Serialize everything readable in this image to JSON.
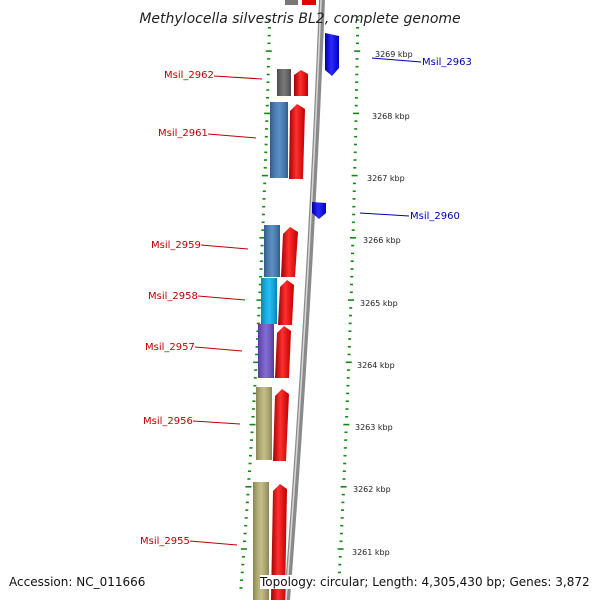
{
  "title": "Methylocella silvestris BL2, complete genome",
  "footer": {
    "accession": "Accession: NC_011666",
    "topology": "Topology: circular; Length: 4,305,430 bp; Genes: 3,872"
  },
  "colors": {
    "forward_label": "#c00000",
    "reverse_label": "#0000b0",
    "forward_arrow": "#ff0000",
    "reverse_arrow": "#0000ff",
    "backbone": "#909090",
    "ticks": "#118811"
  },
  "ticks": [
    {
      "label": "3269 kbp"
    },
    {
      "label": "3268 kbp"
    },
    {
      "label": "3267 kbp"
    },
    {
      "label": "3266 kbp"
    },
    {
      "label": "3265 kbp"
    },
    {
      "label": "3264 kbp"
    },
    {
      "label": "3263 kbp"
    },
    {
      "label": "3262 kbp"
    },
    {
      "label": "3261 kbp"
    }
  ],
  "genes": [
    {
      "name": "Msil_2963",
      "strand": "reverse",
      "cog_color": "#0000ff"
    },
    {
      "name": "Msil_2962",
      "strand": "forward",
      "cog_color": "#606060"
    },
    {
      "name": "Msil_2961",
      "strand": "forward",
      "cog_color": "#3d7ab8"
    },
    {
      "name": "Msil_2960",
      "strand": "reverse",
      "cog_color": "#0000ff"
    },
    {
      "name": "Msil_2959",
      "strand": "forward",
      "cog_color": "#3d7ab8"
    },
    {
      "name": "Msil_2958",
      "strand": "forward",
      "cog_color": "#00b0f0"
    },
    {
      "name": "Msil_2957",
      "strand": "forward",
      "cog_color": "#6a50c8"
    },
    {
      "name": "Msil_2956",
      "strand": "forward",
      "cog_color": "#b8b070"
    },
    {
      "name": "Msil_2955",
      "strand": "forward",
      "cog_color": "#b8b070"
    }
  ]
}
